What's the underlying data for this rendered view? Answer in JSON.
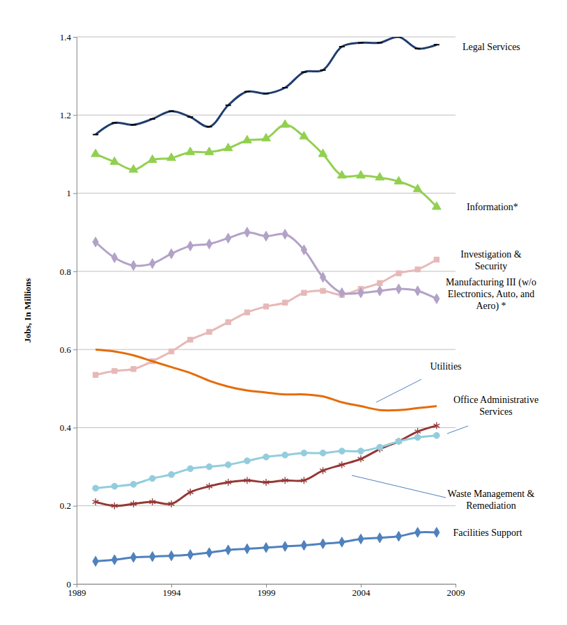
{
  "chart_data": {
    "type": "line",
    "y_label": "Jobs, In Millions",
    "x": [
      1990,
      1991,
      1992,
      1993,
      1994,
      1995,
      1996,
      1997,
      1998,
      1999,
      2000,
      2001,
      2002,
      2003,
      2004,
      2005,
      2006,
      2007,
      2008
    ],
    "xlim": [
      1989,
      2009
    ],
    "xticks": [
      1989,
      1994,
      1999,
      2004,
      2009
    ],
    "ylim": [
      0,
      1.4
    ],
    "yticks": [
      0,
      0.2,
      0.4,
      0.6,
      0.8,
      1,
      1.2,
      1.4
    ],
    "grid": true,
    "series": [
      {
        "name": "Legal Services",
        "color": "#1f3d6e",
        "marker": "dash",
        "line_style": "smooth",
        "values": [
          1.15,
          1.18,
          1.175,
          1.19,
          1.21,
          1.195,
          1.17,
          1.225,
          1.26,
          1.255,
          1.27,
          1.31,
          1.315,
          1.375,
          1.385,
          1.385,
          1.4,
          1.37,
          1.38
        ]
      },
      {
        "name": "Information*",
        "color": "#92d050",
        "marker": "triangle",
        "line_style": "smooth",
        "values": [
          1.1,
          1.08,
          1.06,
          1.085,
          1.09,
          1.105,
          1.105,
          1.115,
          1.135,
          1.14,
          1.175,
          1.145,
          1.1,
          1.045,
          1.045,
          1.04,
          1.03,
          1.01,
          0.965
        ]
      },
      {
        "name": "Investigation & Security",
        "color": "#e6b9b8",
        "marker": "square",
        "line_style": "smooth",
        "values": [
          0.535,
          0.545,
          0.55,
          0.57,
          0.595,
          0.625,
          0.645,
          0.67,
          0.695,
          0.71,
          0.72,
          0.745,
          0.75,
          0.74,
          0.755,
          0.77,
          0.795,
          0.805,
          0.83
        ]
      },
      {
        "name": "Manufacturing III (w/o Electronics, Auto, and Aero) *",
        "color": "#b3a2c7",
        "marker": "diamond",
        "line_style": "smooth",
        "values": [
          0.875,
          0.835,
          0.815,
          0.82,
          0.845,
          0.865,
          0.87,
          0.885,
          0.9,
          0.89,
          0.895,
          0.855,
          0.785,
          0.745,
          0.745,
          0.75,
          0.755,
          0.75,
          0.73
        ]
      },
      {
        "name": "Utilities",
        "color": "#e46c0a",
        "marker": "none",
        "line_style": "smooth",
        "values": [
          0.6,
          0.595,
          0.585,
          0.57,
          0.555,
          0.54,
          0.52,
          0.505,
          0.495,
          0.49,
          0.485,
          0.485,
          0.48,
          0.465,
          0.455,
          0.445,
          0.445,
          0.45,
          0.455
        ]
      },
      {
        "name": "Office Administrative Services",
        "color": "#953735",
        "marker": "asterisk",
        "line_style": "smooth",
        "values": [
          0.21,
          0.2,
          0.205,
          0.21,
          0.205,
          0.235,
          0.25,
          0.26,
          0.265,
          0.26,
          0.265,
          0.265,
          0.29,
          0.305,
          0.32,
          0.345,
          0.365,
          0.39,
          0.405
        ]
      },
      {
        "name": "Waste Management & Remediation",
        "color": "#93cddd",
        "marker": "circle",
        "line_style": "smooth",
        "values": [
          0.245,
          0.25,
          0.255,
          0.27,
          0.28,
          0.295,
          0.3,
          0.305,
          0.315,
          0.325,
          0.33,
          0.335,
          0.335,
          0.34,
          0.34,
          0.35,
          0.365,
          0.375,
          0.38
        ]
      },
      {
        "name": "Facilities Support",
        "color": "#4f81bd",
        "marker": "diamond",
        "line_style": "smooth",
        "values": [
          0.058,
          0.062,
          0.068,
          0.07,
          0.072,
          0.075,
          0.08,
          0.087,
          0.09,
          0.093,
          0.096,
          0.099,
          0.103,
          0.107,
          0.115,
          0.118,
          0.122,
          0.132,
          0.132
        ]
      }
    ]
  }
}
